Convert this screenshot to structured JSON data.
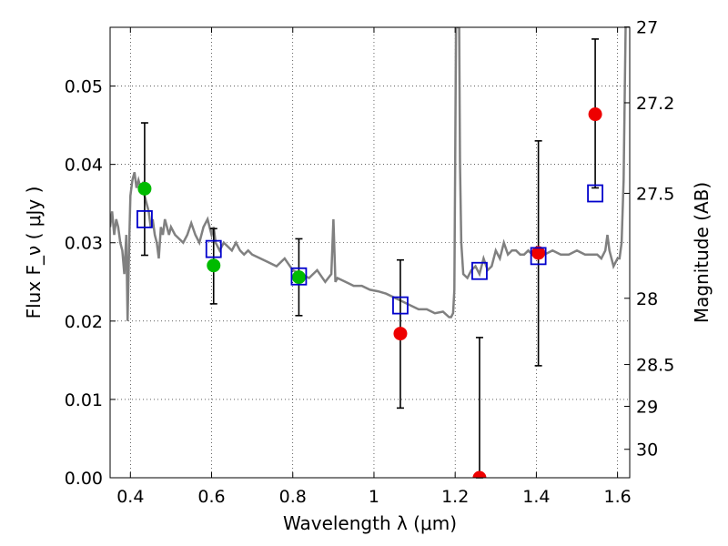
{
  "chart_data": {
    "type": "scatter",
    "xlabel": "Wavelength  λ (μm)",
    "ylabel": "Flux  F_ν  ( μJy )",
    "ylabel_right": "Magnitude (AB)",
    "xlim": [
      0.35,
      1.63
    ],
    "ylim": [
      0.0,
      0.0575
    ],
    "grid": true,
    "x_ticks": [
      {
        "value": 0.4,
        "label": "0.4"
      },
      {
        "value": 0.6,
        "label": "0.6"
      },
      {
        "value": 0.8,
        "label": "0.8"
      },
      {
        "value": 1.0,
        "label": "1"
      },
      {
        "value": 1.2,
        "label": "1.2"
      },
      {
        "value": 1.4,
        "label": "1.4"
      },
      {
        "value": 1.6,
        "label": "1.6"
      }
    ],
    "y_ticks": [
      {
        "value": 0.0,
        "label": "0.00"
      },
      {
        "value": 0.01,
        "label": "0.01"
      },
      {
        "value": 0.02,
        "label": "0.02"
      },
      {
        "value": 0.03,
        "label": "0.03"
      },
      {
        "value": 0.04,
        "label": "0.04"
      },
      {
        "value": 0.05,
        "label": "0.05"
      }
    ],
    "right_ticks": [
      {
        "value": 27,
        "label": "27"
      },
      {
        "value": 27.2,
        "label": "27.2"
      },
      {
        "value": 27.5,
        "label": "27.5"
      },
      {
        "value": 28,
        "label": "28"
      },
      {
        "value": 28.5,
        "label": "28.5"
      },
      {
        "value": 29,
        "label": "29"
      },
      {
        "value": 30,
        "label": "30"
      }
    ],
    "colors": {
      "spectrum": "#808080",
      "green_points": "#00bb00",
      "red_points": "#ee0000",
      "squares": "#0000cc",
      "errorbars": "#000000"
    },
    "series": [
      {
        "type": "line",
        "x": [
          0.35,
          0.355,
          0.36,
          0.365,
          0.37,
          0.375,
          0.38,
          0.385,
          0.39,
          0.393,
          0.397,
          0.4,
          0.405,
          0.41,
          0.415,
          0.42,
          0.425,
          0.43,
          0.435,
          0.44,
          0.445,
          0.45,
          0.455,
          0.46,
          0.465,
          0.47,
          0.475,
          0.48,
          0.485,
          0.49,
          0.495,
          0.5,
          0.51,
          0.52,
          0.53,
          0.54,
          0.55,
          0.56,
          0.57,
          0.58,
          0.59,
          0.6,
          0.605,
          0.61,
          0.62,
          0.63,
          0.64,
          0.65,
          0.66,
          0.67,
          0.68,
          0.69,
          0.7,
          0.72,
          0.74,
          0.76,
          0.78,
          0.8,
          0.82,
          0.84,
          0.86,
          0.88,
          0.895,
          0.9,
          0.905,
          0.91,
          0.93,
          0.95,
          0.97,
          0.99,
          1.01,
          1.03,
          1.05,
          1.07,
          1.09,
          1.11,
          1.13,
          1.15,
          1.17,
          1.185,
          1.19,
          1.195,
          1.198,
          1.2,
          1.202,
          1.205,
          1.21,
          1.212,
          1.215,
          1.22,
          1.23,
          1.24,
          1.25,
          1.26,
          1.27,
          1.28,
          1.29,
          1.3,
          1.31,
          1.32,
          1.33,
          1.34,
          1.35,
          1.36,
          1.37,
          1.38,
          1.39,
          1.4,
          1.42,
          1.44,
          1.46,
          1.48,
          1.5,
          1.52,
          1.54,
          1.55,
          1.56,
          1.57,
          1.575,
          1.58,
          1.59,
          1.6,
          1.605,
          1.61,
          1.615,
          1.62
        ],
        "y": [
          0.032,
          0.034,
          0.031,
          0.033,
          0.032,
          0.03,
          0.029,
          0.026,
          0.031,
          0.02,
          0.03,
          0.036,
          0.038,
          0.039,
          0.037,
          0.038,
          0.037,
          0.0375,
          0.036,
          0.035,
          0.034,
          0.032,
          0.033,
          0.031,
          0.03,
          0.028,
          0.032,
          0.031,
          0.033,
          0.032,
          0.031,
          0.032,
          0.031,
          0.0305,
          0.03,
          0.031,
          0.0325,
          0.031,
          0.03,
          0.032,
          0.033,
          0.031,
          0.032,
          0.03,
          0.029,
          0.03,
          0.0295,
          0.029,
          0.03,
          0.029,
          0.0285,
          0.029,
          0.0285,
          0.028,
          0.0275,
          0.027,
          0.028,
          0.0265,
          0.026,
          0.0255,
          0.0265,
          0.025,
          0.026,
          0.033,
          0.025,
          0.0255,
          0.025,
          0.0245,
          0.0245,
          0.024,
          0.0238,
          0.0235,
          0.023,
          0.0225,
          0.022,
          0.0215,
          0.0215,
          0.021,
          0.0212,
          0.0205,
          0.0205,
          0.021,
          0.024,
          0.04,
          0.058,
          0.058,
          0.058,
          0.04,
          0.03,
          0.026,
          0.0255,
          0.0265,
          0.027,
          0.026,
          0.028,
          0.0265,
          0.027,
          0.029,
          0.028,
          0.03,
          0.0285,
          0.029,
          0.029,
          0.0285,
          0.0285,
          0.029,
          0.0285,
          0.029,
          0.0285,
          0.029,
          0.0285,
          0.0285,
          0.029,
          0.0285,
          0.0285,
          0.0285,
          0.028,
          0.029,
          0.031,
          0.029,
          0.027,
          0.028,
          0.028,
          0.03,
          0.038,
          0.058
        ]
      },
      {
        "type": "scatter",
        "marker": "circle",
        "color": "green",
        "points": [
          {
            "x": 0.435,
            "y": 0.0369
          },
          {
            "x": 0.605,
            "y": 0.0271
          },
          {
            "x": 0.815,
            "y": 0.0256
          }
        ]
      },
      {
        "type": "scatter",
        "marker": "circle",
        "color": "red",
        "points": [
          {
            "x": 1.065,
            "y": 0.0184
          },
          {
            "x": 1.26,
            "y": 0.0
          },
          {
            "x": 1.405,
            "y": 0.0287
          },
          {
            "x": 1.545,
            "y": 0.0464
          }
        ]
      },
      {
        "type": "scatter",
        "marker": "square-open",
        "color": "blue",
        "points": [
          {
            "x": 0.435,
            "y": 0.033
          },
          {
            "x": 0.605,
            "y": 0.0292
          },
          {
            "x": 0.815,
            "y": 0.0257
          },
          {
            "x": 1.065,
            "y": 0.022
          },
          {
            "x": 1.26,
            "y": 0.0264
          },
          {
            "x": 1.405,
            "y": 0.0283
          },
          {
            "x": 1.545,
            "y": 0.0363
          }
        ]
      },
      {
        "type": "errorbar",
        "bars": [
          {
            "x": 0.435,
            "ylow": 0.0284,
            "yhigh": 0.0453
          },
          {
            "x": 0.605,
            "ylow": 0.0222,
            "yhigh": 0.0318
          },
          {
            "x": 0.815,
            "ylow": 0.0207,
            "yhigh": 0.0305
          },
          {
            "x": 1.065,
            "ylow": 0.0089,
            "yhigh": 0.0278
          },
          {
            "x": 1.26,
            "ylow": 0.0,
            "yhigh": 0.0179
          },
          {
            "x": 1.405,
            "ylow": 0.0143,
            "yhigh": 0.043
          },
          {
            "x": 1.545,
            "ylow": 0.037,
            "yhigh": 0.056
          }
        ]
      }
    ]
  }
}
